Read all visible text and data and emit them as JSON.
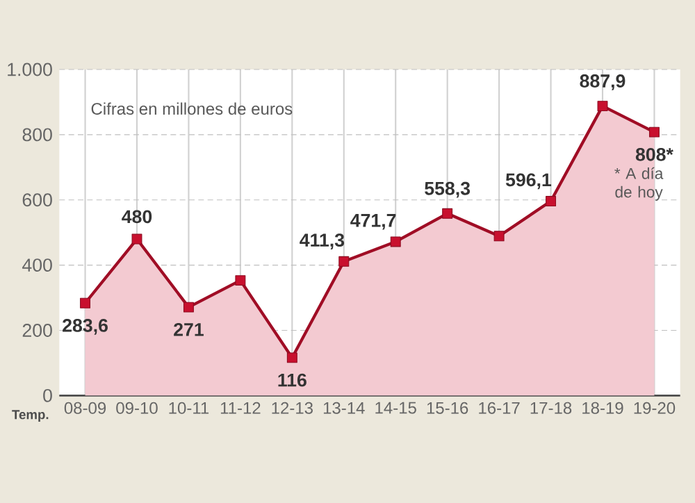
{
  "chart_data": {
    "type": "area",
    "xlabel": "Temp.",
    "categories": [
      "08-09",
      "09-10",
      "10-11",
      "11-12",
      "12-13",
      "13-14",
      "14-15",
      "15-16",
      "16-17",
      "17-18",
      "18-19",
      "19-20"
    ],
    "series": [
      {
        "color": "#c8102e",
        "values": [
          283.6,
          480,
          271,
          353,
          116,
          411.3,
          471.7,
          558.3,
          489,
          596.1,
          887.9,
          808
        ],
        "value_labels": [
          "283,6",
          "480",
          "271",
          null,
          "116",
          "411,3",
          "471,7",
          "558,3",
          null,
          "596,1",
          "887,9",
          "808*"
        ]
      }
    ],
    "ylim": [
      0,
      1000
    ],
    "yticks": [
      0,
      200,
      400,
      600,
      800,
      {
        "value": 1000,
        "label": "1.000"
      }
    ],
    "grid": true,
    "marker": "square",
    "annotations": [
      "Cifras en millones de euros",
      "* A día de hoy"
    ]
  }
}
